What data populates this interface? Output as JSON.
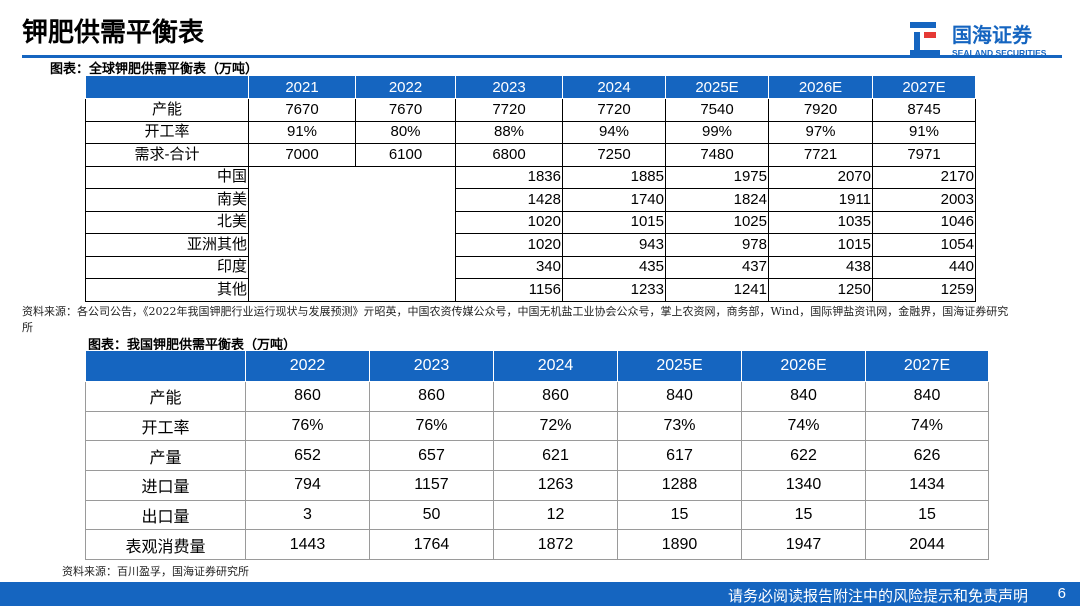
{
  "header": {
    "title": "钾肥供需平衡表",
    "logo": {
      "name": "国海证券",
      "english": "SEALAND SECURITIES"
    }
  },
  "table1": {
    "caption": "图表：全球钾肥供需平衡表（万吨）",
    "columns": [
      "2021",
      "2022",
      "2023",
      "2024",
      "2025E",
      "2026E",
      "2027E"
    ],
    "rows": [
      {
        "label": "产能",
        "cells": [
          "7670",
          "7670",
          "7720",
          "7720",
          "7540",
          "7920",
          "8745"
        ]
      },
      {
        "label": "开工率",
        "cells": [
          "91%",
          "80%",
          "88%",
          "94%",
          "99%",
          "97%",
          "91%"
        ]
      },
      {
        "label": "需求-合计",
        "cells": [
          "7000",
          "6100",
          "6800",
          "7250",
          "7480",
          "7721",
          "7971"
        ]
      }
    ],
    "sub_rows": [
      {
        "label": "中国",
        "cells": [
          "1836",
          "1885",
          "1975",
          "2070",
          "2170"
        ]
      },
      {
        "label": "南美",
        "cells": [
          "1428",
          "1740",
          "1824",
          "1911",
          "2003"
        ]
      },
      {
        "label": "北美",
        "cells": [
          "1020",
          "1015",
          "1025",
          "1035",
          "1046"
        ]
      },
      {
        "label": "亚洲其他",
        "cells": [
          "1020",
          "943",
          "978",
          "1015",
          "1054"
        ]
      },
      {
        "label": "印度",
        "cells": [
          "340",
          "435",
          "437",
          "438",
          "440"
        ]
      },
      {
        "label": "其他",
        "cells": [
          "1156",
          "1233",
          "1241",
          "1250",
          "1259"
        ]
      }
    ],
    "source": "资料来源：各公司公告，《2022年我国钾肥行业运行现状与发展预测》亓昭英，中国农资传媒公众号，中国无机盐工业协会公众号，掌上农资网，商务部，Wind，国际钾盐资讯网，金融界，国海证券研究所"
  },
  "table2": {
    "caption": "图表：我国钾肥供需平衡表（万吨）",
    "columns": [
      "2022",
      "2023",
      "2024",
      "2025E",
      "2026E",
      "2027E"
    ],
    "rows": [
      {
        "label": "产能",
        "cells": [
          "860",
          "860",
          "860",
          "840",
          "840",
          "840"
        ]
      },
      {
        "label": "开工率",
        "cells": [
          "76%",
          "76%",
          "72%",
          "73%",
          "74%",
          "74%"
        ]
      },
      {
        "label": "产量",
        "cells": [
          "652",
          "657",
          "621",
          "617",
          "622",
          "626"
        ]
      },
      {
        "label": "进口量",
        "cells": [
          "794",
          "1157",
          "1263",
          "1288",
          "1340",
          "1434"
        ]
      },
      {
        "label": "出口量",
        "cells": [
          "3",
          "50",
          "12",
          "15",
          "15",
          "15"
        ]
      },
      {
        "label": "表观消费量",
        "cells": [
          "1443",
          "1764",
          "1872",
          "1890",
          "1947",
          "2044"
        ]
      }
    ],
    "source": "资料来源：百川盈孚，国海证券研究所"
  },
  "footer": {
    "disclaimer": "请务必阅读报告附注中的风险提示和免责声明",
    "page": "6"
  }
}
